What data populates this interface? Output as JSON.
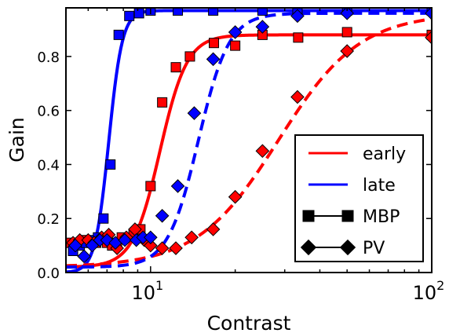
{
  "chart_data": {
    "type": "line",
    "xlabel": "Contrast",
    "ylabel": "Gain",
    "x_scale": "log",
    "xlim": [
      5,
      100
    ],
    "ylim": [
      0,
      0.98
    ],
    "x_ticks": [
      {
        "value": 10,
        "base": "10",
        "exp": "1"
      },
      {
        "value": 100,
        "base": "10",
        "exp": "2"
      }
    ],
    "y_ticks": [
      {
        "value": 0.0,
        "label": "0.0"
      },
      {
        "value": 0.2,
        "label": "0.2"
      },
      {
        "value": 0.4,
        "label": "0.4"
      },
      {
        "value": 0.6,
        "label": "0.6"
      },
      {
        "value": 0.8,
        "label": "0.8"
      }
    ],
    "legend": {
      "placement": "lower-right",
      "entries": [
        {
          "label": "early",
          "kind": "line",
          "color": "#ff0000"
        },
        {
          "label": "late",
          "kind": "line",
          "color": "#0000ff"
        },
        {
          "label": "MBP",
          "kind": "square-marker",
          "color": "#000000"
        },
        {
          "label": "PV",
          "kind": "diamond-marker",
          "color": "#000000"
        }
      ]
    },
    "series": [
      {
        "condition": "early",
        "cell": "MBP",
        "color": "#ff0000",
        "line_style": "solid",
        "marker": "square",
        "fit": {
          "base": 0.02,
          "top": 0.88,
          "x50": 10.8,
          "n": 9
        },
        "points": [
          [
            5.2,
            0.11
          ],
          [
            5.5,
            0.11
          ],
          [
            5.8,
            0.12
          ],
          [
            6.1,
            0.11
          ],
          [
            6.4,
            0.11
          ],
          [
            6.7,
            0.12
          ],
          [
            7.0,
            0.11
          ],
          [
            7.3,
            0.1
          ],
          [
            7.6,
            0.11
          ],
          [
            7.9,
            0.13
          ],
          [
            8.7,
            0.14
          ],
          [
            9.2,
            0.16
          ],
          [
            10.0,
            0.32
          ],
          [
            11.0,
            0.63
          ],
          [
            12.3,
            0.76
          ],
          [
            13.8,
            0.8
          ],
          [
            16.8,
            0.85
          ],
          [
            20.0,
            0.84
          ],
          [
            25.0,
            0.88
          ],
          [
            33.5,
            0.87
          ],
          [
            50.0,
            0.89
          ],
          [
            100,
            0.88
          ]
        ]
      },
      {
        "condition": "late",
        "cell": "MBP",
        "color": "#0000ff",
        "line_style": "solid",
        "marker": "square",
        "fit": {
          "base": 0.0,
          "top": 0.97,
          "x50": 7.1,
          "n": 18
        },
        "points": [
          [
            5.3,
            0.08
          ],
          [
            5.6,
            0.1
          ],
          [
            5.9,
            0.11
          ],
          [
            6.2,
            0.12
          ],
          [
            6.5,
            0.13
          ],
          [
            6.8,
            0.2
          ],
          [
            7.2,
            0.4
          ],
          [
            7.7,
            0.88
          ],
          [
            8.4,
            0.95
          ],
          [
            9.1,
            0.96
          ],
          [
            10.0,
            0.97
          ],
          [
            12.5,
            0.97
          ],
          [
            16.7,
            0.97
          ],
          [
            25.0,
            0.97
          ],
          [
            33.3,
            0.97
          ],
          [
            50.0,
            0.97
          ],
          [
            100,
            0.97
          ]
        ]
      },
      {
        "condition": "early",
        "cell": "PV",
        "color": "#ff0000",
        "line_style": "dashed",
        "marker": "diamond",
        "fit": {
          "base": 0.02,
          "top": 0.96,
          "x50": 28.5,
          "n": 3
        },
        "points": [
          [
            5.3,
            0.11
          ],
          [
            5.6,
            0.12
          ],
          [
            6.0,
            0.12
          ],
          [
            6.3,
            0.11
          ],
          [
            6.7,
            0.13
          ],
          [
            7.1,
            0.14
          ],
          [
            7.6,
            0.09
          ],
          [
            8.2,
            0.13
          ],
          [
            8.8,
            0.16
          ],
          [
            9.5,
            0.12
          ],
          [
            10.0,
            0.1
          ],
          [
            11.0,
            0.09
          ],
          [
            12.3,
            0.09
          ],
          [
            14.0,
            0.13
          ],
          [
            16.7,
            0.16
          ],
          [
            20.0,
            0.28
          ],
          [
            25.0,
            0.45
          ],
          [
            33.3,
            0.65
          ],
          [
            50.0,
            0.82
          ],
          [
            100,
            0.87
          ]
        ]
      },
      {
        "condition": "late",
        "cell": "PV",
        "color": "#0000ff",
        "line_style": "dashed",
        "marker": "diamond",
        "fit": {
          "base": 0.02,
          "top": 0.96,
          "x50": 14.8,
          "n": 8
        },
        "points": [
          [
            5.4,
            0.1
          ],
          [
            5.8,
            0.06
          ],
          [
            6.2,
            0.1
          ],
          [
            6.6,
            0.12
          ],
          [
            7.0,
            0.12
          ],
          [
            7.5,
            0.11
          ],
          [
            8.1,
            0.12
          ],
          [
            8.9,
            0.12
          ],
          [
            9.4,
            0.13
          ],
          [
            10.0,
            0.13
          ],
          [
            11.0,
            0.21
          ],
          [
            12.5,
            0.32
          ],
          [
            14.3,
            0.59
          ],
          [
            16.7,
            0.79
          ],
          [
            20.0,
            0.89
          ],
          [
            25.0,
            0.91
          ],
          [
            33.3,
            0.95
          ],
          [
            50.0,
            0.96
          ],
          [
            100,
            0.96
          ]
        ]
      }
    ]
  }
}
